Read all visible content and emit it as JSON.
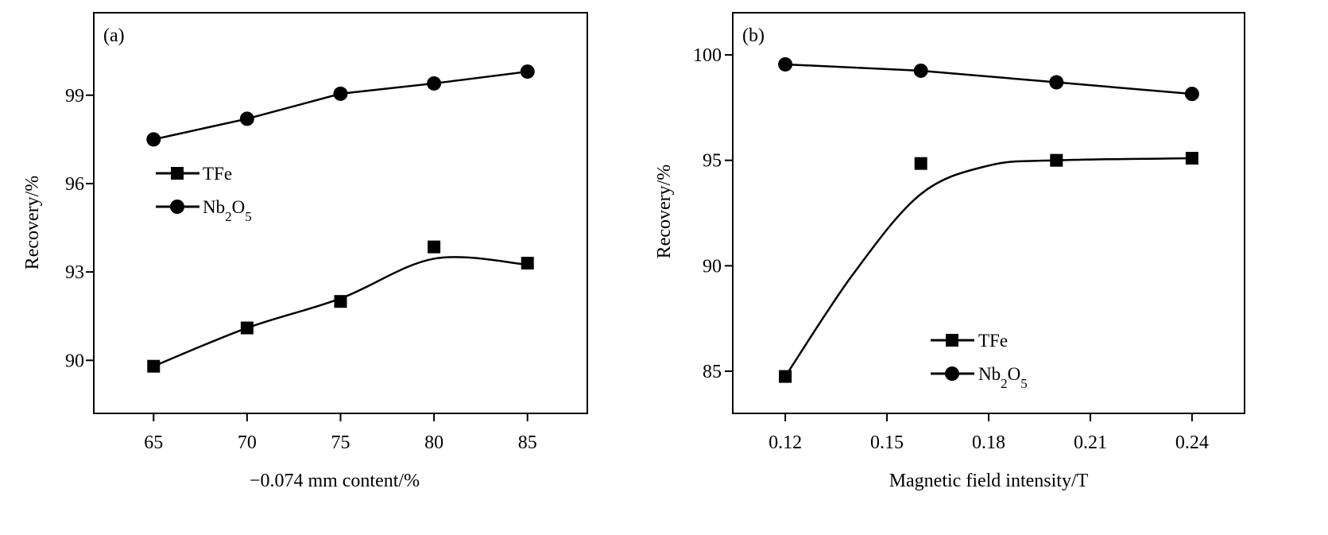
{
  "chart_data": [
    {
      "type": "line",
      "panel_label": "(a)",
      "xlabel": "−0.074 mm content/%",
      "ylabel": "Recovery/%",
      "x": [
        65,
        70,
        75,
        80,
        85
      ],
      "xticks": [
        65,
        70,
        75,
        80,
        85
      ],
      "yticks": [
        90,
        93,
        96,
        99
      ],
      "xlim": [
        61.8,
        88.2
      ],
      "ylim": [
        88.2,
        101.8
      ],
      "grid": false,
      "legend_position": "center-left",
      "series": [
        {
          "name": "TFe",
          "marker": "square",
          "values": [
            89.8,
            91.1,
            92.0,
            93.85,
            93.3
          ]
        },
        {
          "name": "Nb2O5",
          "marker": "circle",
          "values": [
            97.5,
            98.2,
            99.05,
            99.4,
            99.8
          ]
        }
      ]
    },
    {
      "type": "line",
      "panel_label": "(b)",
      "xlabel": "Magnetic field intensity/T",
      "ylabel": "Recovery/%",
      "x": [
        0.12,
        0.16,
        0.2,
        0.24
      ],
      "xticks": [
        "0.12",
        "0.15",
        "0.18",
        "0.21",
        "0.24"
      ],
      "yticks": [
        85,
        90,
        95,
        100
      ],
      "xlim": [
        0.1045,
        0.2555
      ],
      "ylim": [
        83.0,
        102.0
      ],
      "grid": false,
      "legend_position": "bottom-center",
      "series": [
        {
          "name": "TFe",
          "marker": "square",
          "values": [
            84.75,
            94.85,
            95.0,
            95.1
          ]
        },
        {
          "name": "Nb2O5",
          "marker": "circle",
          "values": [
            99.55,
            99.25,
            98.7,
            98.15
          ]
        }
      ]
    }
  ]
}
